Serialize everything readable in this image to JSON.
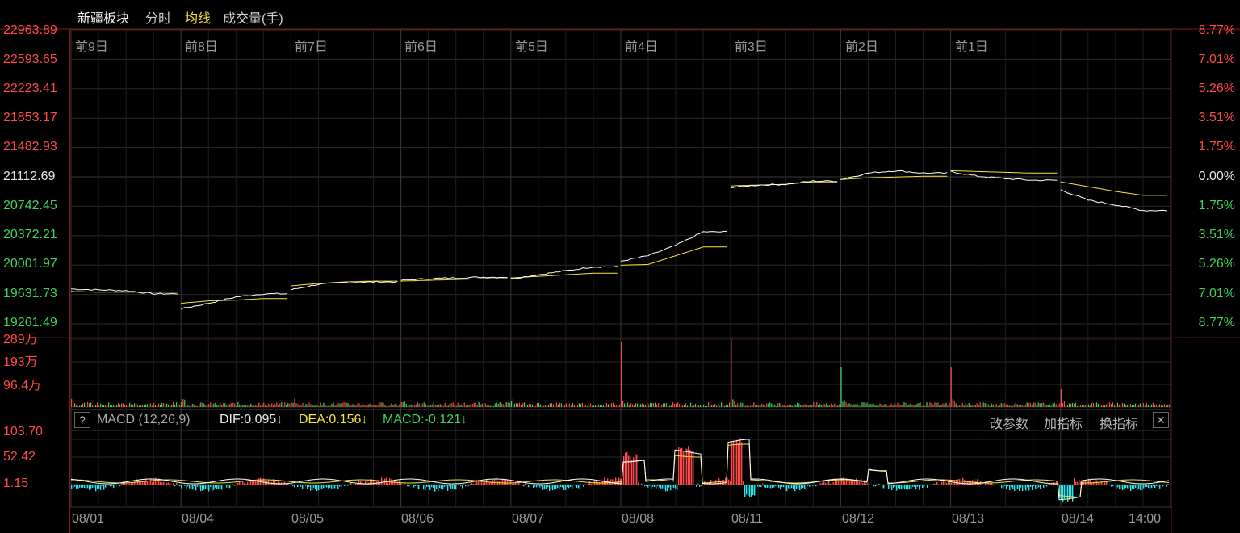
{
  "header": {
    "title": "新疆板块",
    "tabs": [
      {
        "label": "分时",
        "active": false
      },
      {
        "label": "均线",
        "active": true
      },
      {
        "label": "成交量(手)",
        "active": false
      }
    ]
  },
  "price_axis": {
    "left_labels": [
      "22963.89",
      "22593.65",
      "22223.41",
      "21853.17",
      "21482.93",
      "21112.69",
      "20742.45",
      "20372.21",
      "20001.97",
      "19631.73",
      "19261.49"
    ],
    "right_labels": [
      "8.77%",
      "7.01%",
      "5.26%",
      "3.51%",
      "1.75%",
      "0.00%",
      "1.75%",
      "3.51%",
      "5.26%",
      "7.01%",
      "8.77%"
    ]
  },
  "day_labels": [
    "前9日",
    "前8日",
    "前7日",
    "前6日",
    "前5日",
    "前4日",
    "前3日",
    "前2日",
    "前1日"
  ],
  "volume_axis": {
    "labels": [
      "289万",
      "193万",
      "96.4万"
    ]
  },
  "macd": {
    "help_label": "?",
    "name_label": "MACD (12,26,9)",
    "dif_label": "DIF:0.095↓",
    "dea_label": "DEA:0.156↓",
    "macd_label": "MACD:-0.121↓",
    "buttons": [
      "改参数",
      "加指标",
      "换指标"
    ],
    "close_label": "✕",
    "axis_labels": [
      "103.70",
      "52.42",
      "1.15"
    ]
  },
  "date_labels": [
    "08/01",
    "08/04",
    "08/05",
    "08/06",
    "08/07",
    "08/08",
    "08/11",
    "08/12",
    "08/13",
    "08/14",
    "14:00"
  ],
  "colors": {
    "up": "#ff4a4a",
    "down": "#3fd45b",
    "price_line": "#ffffff",
    "avg_line": "#f5e63a",
    "macd_neg": "#2ee6f0",
    "grid": "#2a2a2a",
    "frame": "#8b1a1a"
  },
  "chart_data": {
    "type": "line",
    "title": "新疆板块",
    "y_range": [
      19261.49,
      22963.89
    ],
    "base_value": 21112.69,
    "days": [
      "08/01",
      "08/04",
      "08/05",
      "08/06",
      "08/07",
      "08/08",
      "08/11",
      "08/12",
      "08/13",
      "08/14"
    ],
    "series": [
      {
        "name": "分时",
        "values": [
          19700,
          19690,
          19680,
          19640,
          19450,
          19520,
          19600,
          19640,
          19690,
          19760,
          19780,
          19790,
          19810,
          19830,
          19840,
          19850,
          19830,
          19880,
          19930,
          19980,
          20050,
          20120,
          20250,
          20420,
          20980,
          21010,
          21020,
          21060,
          21080,
          21160,
          21190,
          21160,
          21180,
          21120,
          21090,
          21070,
          20950,
          20820,
          20760,
          20690
        ]
      },
      {
        "name": "均线",
        "values": [
          19670,
          19660,
          19660,
          19660,
          19520,
          19550,
          19560,
          19580,
          19740,
          19770,
          19790,
          19800,
          19800,
          19810,
          19820,
          19830,
          19840,
          19860,
          19880,
          19900,
          20000,
          20010,
          20120,
          20230,
          21000,
          21010,
          21020,
          21050,
          21080,
          21100,
          21110,
          21120,
          21190,
          21180,
          21170,
          21160,
          21050,
          20990,
          20930,
          20880
        ]
      }
    ]
  }
}
